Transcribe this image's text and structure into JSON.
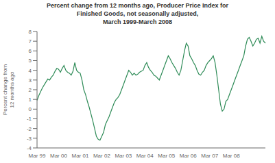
{
  "chart_data": {
    "type": "line",
    "title": "Percent change from 12 months ago, Producer Price Index for\nFinished Goods, not seasonally adjusted,\nMarch 1999-March 2008",
    "ylabel": "Percent change from\n12 months ago",
    "color": "#2e8b57",
    "grid": false,
    "ylim": [
      -4,
      8
    ],
    "yticks": [
      -4,
      -3,
      -2,
      -1,
      0,
      1,
      2,
      3,
      4,
      5,
      6,
      7,
      8
    ],
    "categories": [
      "Mar 99",
      null,
      null,
      null,
      null,
      null,
      null,
      null,
      null,
      null,
      null,
      null,
      "Mar 00",
      null,
      null,
      null,
      null,
      null,
      null,
      null,
      null,
      null,
      null,
      null,
      "Mar 01",
      null,
      null,
      null,
      null,
      null,
      null,
      null,
      null,
      null,
      null,
      null,
      "Mar 02",
      null,
      null,
      null,
      null,
      null,
      null,
      null,
      null,
      null,
      null,
      null,
      "Mar 03",
      null,
      null,
      null,
      null,
      null,
      null,
      null,
      null,
      null,
      null,
      null,
      "Mar 04",
      null,
      null,
      null,
      null,
      null,
      null,
      null,
      null,
      null,
      null,
      null,
      "Mar 05",
      null,
      null,
      null,
      null,
      null,
      null,
      null,
      null,
      null,
      null,
      null,
      "Mar 06",
      null,
      null,
      null,
      null,
      null,
      null,
      null,
      null,
      null,
      null,
      null,
      "Mar 07",
      null,
      null,
      null,
      null,
      null,
      null,
      null,
      null,
      null,
      null,
      null,
      "Mar 08",
      null,
      null,
      null,
      null,
      null,
      null,
      null,
      null,
      null,
      null,
      null,
      null,
      null,
      null,
      null,
      null,
      null,
      null,
      null
    ],
    "values": [
      0.9,
      1.4,
      1.8,
      2.2,
      2.5,
      2.8,
      3.1,
      3.0,
      3.3,
      3.5,
      3.9,
      4.2,
      4.1,
      3.8,
      4.2,
      4.5,
      4.0,
      3.8,
      3.7,
      3.5,
      3.9,
      4.8,
      4.0,
      3.8,
      3.7,
      3.0,
      2.0,
      1.5,
      0.8,
      0.2,
      -0.5,
      -1.2,
      -2.0,
      -2.8,
      -3.1,
      -3.2,
      -2.8,
      -2.4,
      -1.6,
      -1.2,
      -0.8,
      -0.3,
      0.2,
      0.7,
      1.0,
      1.2,
      1.5,
      2.0,
      2.5,
      3.0,
      3.5,
      4.0,
      3.8,
      3.5,
      3.7,
      3.5,
      3.6,
      3.8,
      3.9,
      4.0,
      4.5,
      4.8,
      4.3,
      4.0,
      3.8,
      3.5,
      3.4,
      3.2,
      3.0,
      3.5,
      4.0,
      4.5,
      5.0,
      5.5,
      5.2,
      4.8,
      4.5,
      4.2,
      3.8,
      3.5,
      4.0,
      5.0,
      6.0,
      6.8,
      6.5,
      5.5,
      5.2,
      4.8,
      4.5,
      4.0,
      3.6,
      3.5,
      3.8,
      4.0,
      4.5,
      4.8,
      5.0,
      5.2,
      5.5,
      4.8,
      3.5,
      2.0,
      0.5,
      -0.2,
      0.0,
      0.8,
      1.0,
      1.5,
      2.0,
      2.5,
      3.0,
      3.5,
      4.0,
      4.5,
      5.0,
      5.5,
      6.5,
      7.2,
      7.4,
      7.0,
      6.5,
      6.8,
      7.2,
      7.3,
      6.8,
      7.5,
      7.0,
      6.8
    ]
  }
}
